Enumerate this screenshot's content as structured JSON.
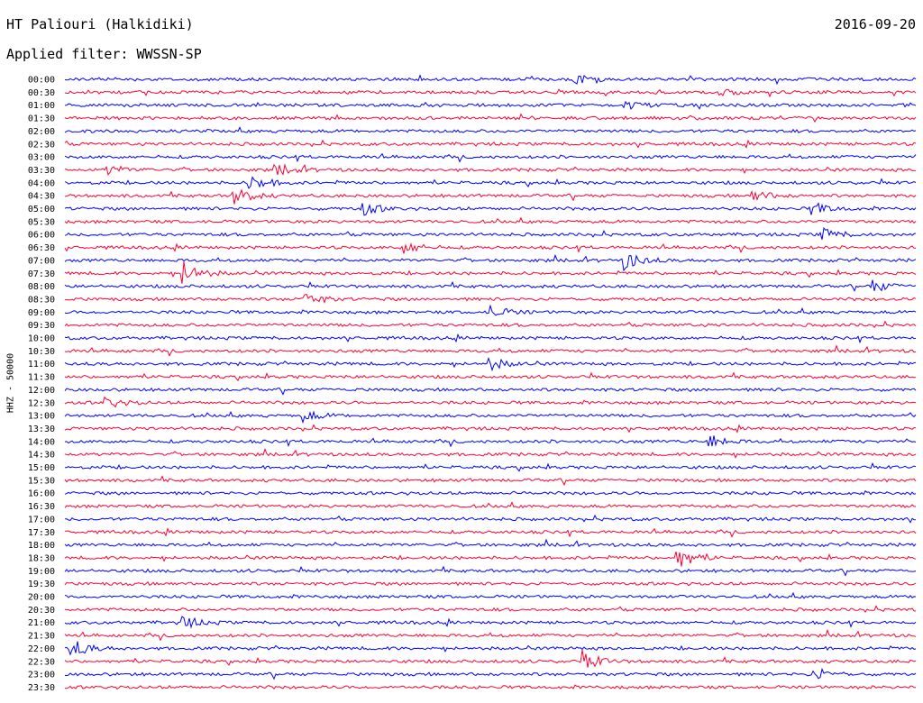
{
  "header": {
    "station": "HT Paliouri (Halkidiki)",
    "date": "2016-09-20",
    "filter_text": "Applied filter: WWSSN-SP"
  },
  "colors": {
    "even_trace": "#0000ff",
    "odd_trace": "#ff0033",
    "background": "#ffffff"
  },
  "chart_data": {
    "type": "line",
    "title": "HT Paliouri (Halkidiki)",
    "subtitle": "Applied filter: WWSSN-SP",
    "ylabel": "HHZ - 50000",
    "xlabel": "",
    "grid": false,
    "legend": "none",
    "trace_colors": [
      "#0000ff",
      "#ff0033"
    ],
    "row_labels": [
      "00:00",
      "00:30",
      "01:00",
      "01:30",
      "02:00",
      "02:30",
      "03:00",
      "03:30",
      "04:00",
      "04:30",
      "05:00",
      "05:30",
      "06:00",
      "06:30",
      "07:00",
      "07:30",
      "08:00",
      "08:30",
      "09:00",
      "09:30",
      "10:00",
      "10:30",
      "11:00",
      "11:30",
      "12:00",
      "12:30",
      "13:00",
      "13:30",
      "14:00",
      "14:30",
      "15:00",
      "15:30",
      "16:00",
      "16:30",
      "17:00",
      "17:30",
      "18:00",
      "18:30",
      "19:00",
      "19:30",
      "20:00",
      "20:30",
      "21:00",
      "21:30",
      "22:00",
      "22:30",
      "23:00",
      "23:30"
    ],
    "notable_events": [
      {
        "row": "00:00",
        "t_frac": 0.6,
        "amp": 0.8
      },
      {
        "row": "00:30",
        "t_frac": 0.77,
        "amp": 0.6
      },
      {
        "row": "01:00",
        "t_frac": 0.66,
        "amp": 0.9
      },
      {
        "row": "03:30",
        "t_frac": 0.05,
        "amp": 0.9
      },
      {
        "row": "03:30",
        "t_frac": 0.25,
        "amp": 1.0
      },
      {
        "row": "04:00",
        "t_frac": 0.22,
        "amp": 1.4
      },
      {
        "row": "04:30",
        "t_frac": 0.2,
        "amp": 1.5
      },
      {
        "row": "04:30",
        "t_frac": 0.81,
        "amp": 1.0
      },
      {
        "row": "05:00",
        "t_frac": 0.35,
        "amp": 1.2
      },
      {
        "row": "05:00",
        "t_frac": 0.88,
        "amp": 1.1
      },
      {
        "row": "06:00",
        "t_frac": 0.89,
        "amp": 1.2
      },
      {
        "row": "06:30",
        "t_frac": 0.4,
        "amp": 1.2
      },
      {
        "row": "07:00",
        "t_frac": 0.66,
        "amp": 1.6
      },
      {
        "row": "07:30",
        "t_frac": 0.14,
        "amp": 2.0
      },
      {
        "row": "08:00",
        "t_frac": 0.95,
        "amp": 1.1
      },
      {
        "row": "08:30",
        "t_frac": 0.28,
        "amp": 1.4
      },
      {
        "row": "09:00",
        "t_frac": 0.5,
        "amp": 1.2
      },
      {
        "row": "11:00",
        "t_frac": 0.5,
        "amp": 1.1
      },
      {
        "row": "12:30",
        "t_frac": 0.05,
        "amp": 1.0
      },
      {
        "row": "13:00",
        "t_frac": 0.28,
        "amp": 1.0
      },
      {
        "row": "14:00",
        "t_frac": 0.76,
        "amp": 1.0
      },
      {
        "row": "18:30",
        "t_frac": 0.72,
        "amp": 2.2
      },
      {
        "row": "21:00",
        "t_frac": 0.14,
        "amp": 1.0
      },
      {
        "row": "22:00",
        "t_frac": 0.01,
        "amp": 1.5
      },
      {
        "row": "22:30",
        "t_frac": 0.61,
        "amp": 1.6
      },
      {
        "row": "23:00",
        "t_frac": 0.88,
        "amp": 1.2
      }
    ]
  }
}
